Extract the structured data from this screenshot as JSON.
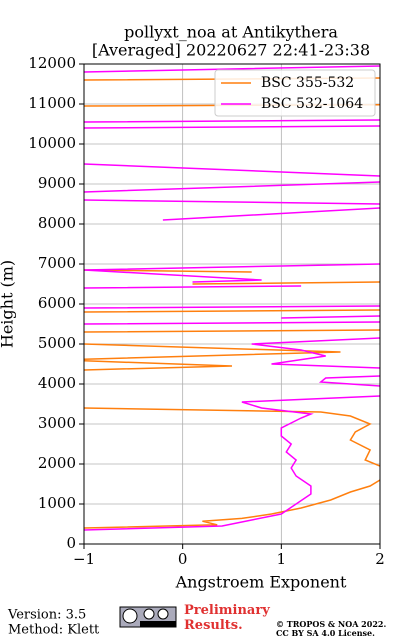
{
  "chart_data": {
    "type": "line",
    "title": "pollyxt_noa at Antikythera",
    "subtitle": "[Averaged] 20220627 22:41-23:38",
    "xlabel": "Angstroem Exponent",
    "ylabel": "Height (m)",
    "xlim": [
      -1,
      2
    ],
    "ylim": [
      0,
      12000
    ],
    "xticks": [
      {
        "value": -1,
        "label": "−1"
      },
      0,
      1,
      2
    ],
    "yticks": [
      0,
      1000,
      2000,
      3000,
      4000,
      5000,
      6000,
      7000,
      8000,
      9000,
      10000,
      11000,
      12000
    ],
    "grid": true,
    "legend": "upper right",
    "series": [
      {
        "name": "BSC 355-532",
        "color": "#ff7f0e",
        "x": [
          -1,
          0.35,
          0.2,
          0.6,
          0.9,
          1.2,
          1.5,
          1.7,
          1.9,
          2,
          null,
          2,
          1.85,
          1.9,
          1.7,
          1.75,
          1.9,
          1.7,
          1.4,
          -1,
          null,
          -1,
          0.5,
          -1,
          null,
          -1,
          1.6,
          -1,
          null,
          -1,
          2,
          null,
          -1,
          2,
          null,
          0.1,
          2,
          null,
          -1,
          0.7,
          null,
          -1,
          2,
          null,
          -1,
          2
        ],
        "y": [
          400,
          480,
          570,
          640,
          750,
          900,
          1100,
          1300,
          1450,
          1600,
          null,
          1950,
          2100,
          2350,
          2600,
          2800,
          3000,
          3200,
          3300,
          3400,
          null,
          4350,
          4450,
          4580,
          null,
          4620,
          4800,
          5000,
          null,
          5300,
          5350,
          null,
          5800,
          5850,
          null,
          6500,
          6550,
          null,
          6850,
          6800,
          null,
          10950,
          10980,
          null,
          11600,
          11650
        ]
      },
      {
        "name": "BSC 532-1064",
        "color": "#ff00ff",
        "x": [
          -1,
          0.4,
          0.7,
          1.0,
          1.15,
          1.3,
          1.3,
          1.15,
          1.1,
          1.15,
          1.05,
          1.1,
          1.0,
          1.0,
          1.2,
          1.3,
          0.8,
          0.6,
          2,
          null,
          2,
          1.4,
          1.45,
          2,
          null,
          2,
          0.9,
          1.45,
          1.2,
          0.7,
          2,
          null,
          -1,
          2,
          null,
          1.0,
          2,
          null,
          -1,
          2,
          null,
          -1,
          1.2,
          null,
          0.1,
          0.8,
          -1,
          1.0,
          2,
          null,
          -0.2,
          2,
          null,
          -1,
          2,
          null,
          -1,
          2,
          null,
          -1,
          2,
          null,
          -1,
          2,
          null,
          -1,
          2,
          null,
          -1,
          0,
          2
        ],
        "y": [
          350,
          450,
          600,
          750,
          1000,
          1250,
          1450,
          1700,
          1900,
          2100,
          2300,
          2500,
          2700,
          2900,
          3150,
          3250,
          3400,
          3550,
          3700,
          null,
          3950,
          4050,
          4150,
          4200,
          null,
          4400,
          4500,
          4700,
          4850,
          5000,
          5150,
          null,
          5500,
          5550,
          null,
          5650,
          5700,
          null,
          5900,
          5950,
          null,
          6400,
          6450,
          null,
          6550,
          6600,
          6850,
          6950,
          7000,
          null,
          8100,
          8400,
          null,
          8600,
          8500,
          null,
          8800,
          9050,
          null,
          9500,
          9200,
          null,
          10400,
          10450,
          null,
          10550,
          10600,
          null,
          11800,
          11850,
          11950
        ]
      }
    ]
  },
  "footer": {
    "version": "Version: 3.5",
    "method": "Method: Klett",
    "status": "Preliminary Results.",
    "copyright": "© TROPOS & NOA 2022.",
    "license": "CC BY SA 4.0 License."
  }
}
